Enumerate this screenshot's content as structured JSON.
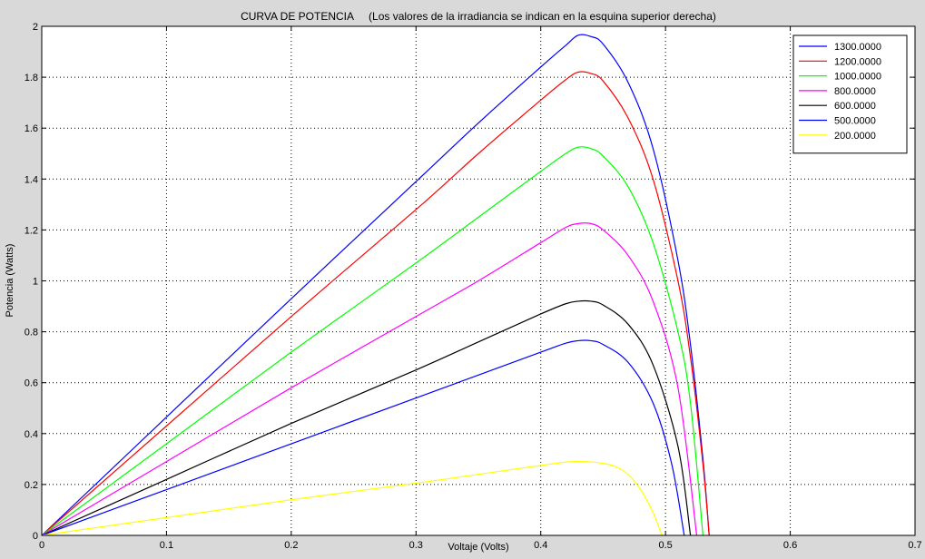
{
  "chart_data": {
    "type": "line",
    "title": "CURVA DE POTENCIA     (Los valores de la irradiancia se indican en la esquina superior derecha)",
    "xlabel": "Voltaje (Volts)",
    "ylabel": "Potencia (Watts)",
    "xlim": [
      0,
      0.7
    ],
    "ylim": [
      0,
      2
    ],
    "grid": true,
    "legend_position": "top-right",
    "x_ticks": [
      "0",
      "0.1",
      "0.2",
      "0.3",
      "0.4",
      "0.5",
      "0.6",
      "0.7"
    ],
    "y_ticks": [
      "0",
      "0.2",
      "0.4",
      "0.6",
      "0.8",
      "1",
      "1.2",
      "1.4",
      "1.6",
      "1.8",
      "2"
    ],
    "series": [
      {
        "name": "1300.0000",
        "color": "#0000ff",
        "x": [
          0,
          0.1,
          0.2,
          0.3,
          0.35,
          0.4,
          0.42,
          0.43,
          0.44,
          0.45,
          0.47,
          0.49,
          0.51,
          0.52,
          0.53,
          0.535
        ],
        "y": [
          0,
          0.465,
          0.93,
          1.39,
          1.62,
          1.84,
          1.925,
          1.965,
          1.96,
          1.93,
          1.78,
          1.52,
          1.08,
          0.75,
          0.3,
          0
        ]
      },
      {
        "name": "1200.0000",
        "color": "#ff0000",
        "x": [
          0,
          0.1,
          0.2,
          0.3,
          0.35,
          0.4,
          0.42,
          0.43,
          0.44,
          0.45,
          0.47,
          0.49,
          0.51,
          0.52,
          0.53,
          0.535
        ],
        "y": [
          0,
          0.43,
          0.86,
          1.28,
          1.5,
          1.71,
          1.79,
          1.82,
          1.815,
          1.785,
          1.64,
          1.4,
          1.0,
          0.7,
          0.28,
          0
        ]
      },
      {
        "name": "1000.0000",
        "color": "#00ff00",
        "x": [
          0,
          0.1,
          0.2,
          0.3,
          0.35,
          0.4,
          0.42,
          0.43,
          0.44,
          0.45,
          0.47,
          0.49,
          0.51,
          0.52,
          0.53
        ],
        "y": [
          0,
          0.36,
          0.72,
          1.07,
          1.25,
          1.43,
          1.5,
          1.525,
          1.52,
          1.49,
          1.37,
          1.15,
          0.8,
          0.52,
          0
        ]
      },
      {
        "name": "800.0000",
        "color": "#ff00ff",
        "x": [
          0,
          0.1,
          0.2,
          0.3,
          0.35,
          0.4,
          0.42,
          0.43,
          0.44,
          0.45,
          0.47,
          0.49,
          0.51,
          0.525
        ],
        "y": [
          0,
          0.29,
          0.58,
          0.86,
          1.0,
          1.15,
          1.21,
          1.225,
          1.225,
          1.2,
          1.1,
          0.92,
          0.58,
          0
        ]
      },
      {
        "name": "600.0000",
        "color": "#000000",
        "x": [
          0,
          0.1,
          0.2,
          0.3,
          0.35,
          0.4,
          0.42,
          0.43,
          0.44,
          0.45,
          0.47,
          0.49,
          0.51,
          0.52
        ],
        "y": [
          0,
          0.22,
          0.44,
          0.65,
          0.76,
          0.87,
          0.91,
          0.92,
          0.92,
          0.905,
          0.83,
          0.67,
          0.35,
          0
        ]
      },
      {
        "name": "500.0000",
        "color": "#0000ff",
        "x": [
          0,
          0.1,
          0.2,
          0.3,
          0.35,
          0.4,
          0.42,
          0.43,
          0.44,
          0.45,
          0.47,
          0.49,
          0.505,
          0.515
        ],
        "y": [
          0,
          0.18,
          0.36,
          0.54,
          0.63,
          0.72,
          0.755,
          0.765,
          0.765,
          0.75,
          0.68,
          0.52,
          0.28,
          0
        ]
      },
      {
        "name": "200.0000",
        "color": "#ffff00",
        "x": [
          0,
          0.1,
          0.2,
          0.3,
          0.35,
          0.4,
          0.42,
          0.43,
          0.44,
          0.45,
          0.46,
          0.47,
          0.48,
          0.49,
          0.497
        ],
        "y": [
          0,
          0.07,
          0.14,
          0.205,
          0.24,
          0.275,
          0.288,
          0.29,
          0.289,
          0.283,
          0.27,
          0.24,
          0.18,
          0.09,
          0
        ]
      }
    ]
  }
}
